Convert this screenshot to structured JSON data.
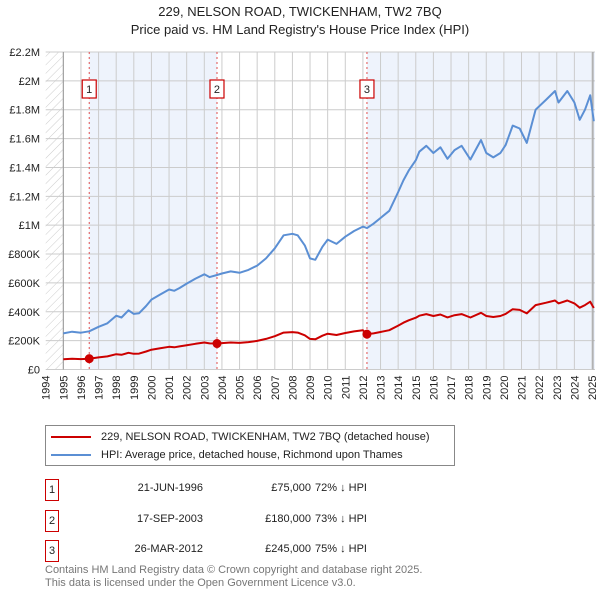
{
  "header": {
    "title": "229, NELSON ROAD, TWICKENHAM, TW2 7BQ",
    "subtitle": "Price paid vs. HM Land Registry's House Price Index (HPI)"
  },
  "chart_data": {
    "type": "line",
    "title": "229, NELSON ROAD, TWICKENHAM, TW2 7BQ",
    "subtitle": "Price paid vs. HM Land Registry's House Price Index (HPI)",
    "xlim": [
      1994,
      2025
    ],
    "ylim": [
      0,
      2200000
    ],
    "grid": true,
    "x_ticks": [
      "1994",
      "1995",
      "1996",
      "1997",
      "1998",
      "1999",
      "2000",
      "2001",
      "2002",
      "2003",
      "2004",
      "2005",
      "2006",
      "2007",
      "2008",
      "2009",
      "2010",
      "2011",
      "2012",
      "2013",
      "2014",
      "2015",
      "2016",
      "2017",
      "2018",
      "2019",
      "2020",
      "2021",
      "2022",
      "2023",
      "2024",
      "2025"
    ],
    "y_ticks": [
      {
        "value": 0,
        "label": "£0"
      },
      {
        "value": 200000,
        "label": "£200K"
      },
      {
        "value": 400000,
        "label": "£400K"
      },
      {
        "value": 600000,
        "label": "£600K"
      },
      {
        "value": 800000,
        "label": "£800K"
      },
      {
        "value": 1000000,
        "label": "£1M"
      },
      {
        "value": 1200000,
        "label": "£1.2M"
      },
      {
        "value": 1400000,
        "label": "£1.4M"
      },
      {
        "value": 1600000,
        "label": "£1.6M"
      },
      {
        "value": 1800000,
        "label": "£1.8M"
      },
      {
        "value": 2000000,
        "label": "£2M"
      },
      {
        "value": 2200000,
        "label": "£2.2M"
      }
    ],
    "x": [
      1995.0,
      1995.5,
      1996.0,
      1996.47,
      1997.0,
      1997.5,
      1998.0,
      1998.3,
      1998.7,
      1999.0,
      1999.3,
      1999.7,
      2000.0,
      2000.5,
      2001.0,
      2001.3,
      2001.6,
      2002.0,
      2002.5,
      2003.0,
      2003.3,
      2003.72,
      2004.0,
      2004.5,
      2005.0,
      2005.5,
      2006.0,
      2006.5,
      2007.0,
      2007.5,
      2008.0,
      2008.3,
      2008.7,
      2009.0,
      2009.3,
      2009.7,
      2010.0,
      2010.5,
      2011.0,
      2011.5,
      2012.0,
      2012.23,
      2012.6,
      2013.0,
      2013.5,
      2014.0,
      2014.3,
      2014.6,
      2015.0,
      2015.2,
      2015.6,
      2016.0,
      2016.4,
      2016.8,
      2017.2,
      2017.6,
      2018.1,
      2018.7,
      2019.0,
      2019.4,
      2019.8,
      2020.1,
      2020.5,
      2020.9,
      2021.3,
      2021.8,
      2022.4,
      2022.9,
      2023.1,
      2023.6,
      2024.0,
      2024.3,
      2024.6,
      2024.9,
      2025.1
    ],
    "series": [
      {
        "name": "229, NELSON ROAD, TWICKENHAM, TW2 7BQ (detached house)",
        "color": "#cc0000",
        "values": [
          71,
          74,
          72,
          75,
          84,
          91,
          106,
          102,
          116,
          109,
          110,
          125,
          137,
          147,
          157,
          154,
          160,
          168,
          178,
          187,
          181,
          180,
          183,
          187,
          184,
          190,
          198,
          212,
          231,
          256,
          259,
          256,
          237,
          212,
          209,
          234,
          248,
          239,
          253,
          264,
          272,
          245,
          250,
          260,
          272,
          304,
          324,
          341,
          359,
          373,
          384,
          371,
          381,
          361,
          376,
          384,
          360,
          393,
          371,
          364,
          371,
          385,
          418,
          413,
          389,
          446,
          463,
          478,
          458,
          478,
          458,
          428,
          446,
          470,
          426
        ],
        "units": "£K"
      },
      {
        "name": "HPI: Average price, detached house, Richmond upon Thames",
        "color": "#5b8fd4",
        "values": [
          250,
          262,
          255,
          265,
          296,
          320,
          373,
          360,
          410,
          385,
          390,
          440,
          484,
          520,
          554,
          545,
          565,
          595,
          630,
          660,
          640,
          655,
          665,
          680,
          670,
          690,
          720,
          770,
          840,
          930,
          940,
          930,
          860,
          770,
          760,
          850,
          900,
          870,
          920,
          960,
          990,
          980,
          1010,
          1050,
          1100,
          1230,
          1310,
          1378,
          1450,
          1509,
          1550,
          1500,
          1540,
          1460,
          1520,
          1550,
          1455,
          1590,
          1500,
          1470,
          1500,
          1555,
          1690,
          1670,
          1570,
          1800,
          1870,
          1930,
          1850,
          1930,
          1850,
          1730,
          1800,
          1900,
          1720
        ],
        "units": "£K"
      }
    ],
    "sales": [
      {
        "label": "1",
        "year": 1996.47,
        "price": 75000
      },
      {
        "label": "2",
        "year": 2003.72,
        "price": 180000
      },
      {
        "label": "3",
        "year": 2012.23,
        "price": 245000
      }
    ],
    "data_start": 1995,
    "legend_position": "below"
  },
  "legend": {
    "items": [
      {
        "label": "229, NELSON ROAD, TWICKENHAM, TW2 7BQ (detached house)",
        "color": "#cc0000"
      },
      {
        "label": "HPI: Average price, detached house, Richmond upon Thames",
        "color": "#5b8fd4"
      }
    ]
  },
  "table": [
    {
      "num": "1",
      "date": "21-JUN-1996",
      "price": "£75,000",
      "hpi": "72% ↓ HPI"
    },
    {
      "num": "2",
      "date": "17-SEP-2003",
      "price": "£180,000",
      "hpi": "73% ↓ HPI"
    },
    {
      "num": "3",
      "date": "26-MAR-2012",
      "price": "£245,000",
      "hpi": "75% ↓ HPI"
    }
  ],
  "footer": {
    "line1": "Contains HM Land Registry data © Crown copyright and database right 2025.",
    "line2": "This data is licensed under the Open Government Licence v3.0."
  }
}
